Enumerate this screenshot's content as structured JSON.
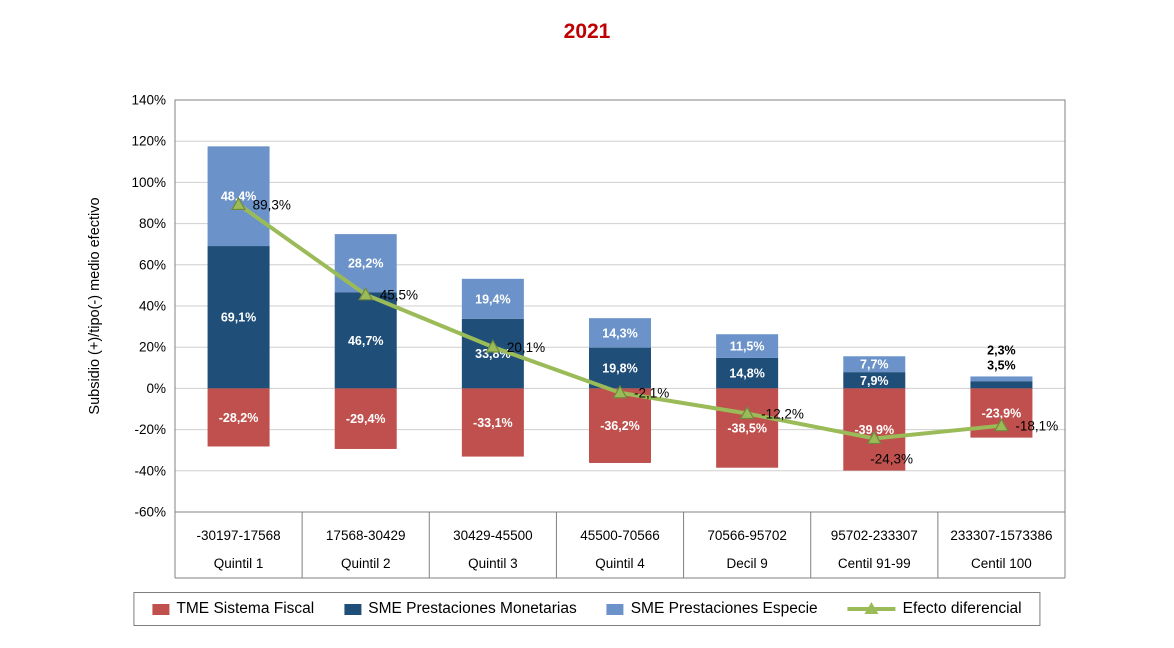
{
  "chart_data": {
    "type": "combo-stacked-bar-line",
    "title": "2021",
    "ylabel": "Subsidio (+)/tipo(-) medio efectivo",
    "ylim": [
      -60,
      140
    ],
    "ytick_step": 20,
    "grid": true,
    "legend_position": "bottom",
    "categories": [
      {
        "range": "-30197-17568",
        "label": "Quintil 1"
      },
      {
        "range": "17568-30429",
        "label": "Quintil 2"
      },
      {
        "range": "30429-45500",
        "label": "Quintil 3"
      },
      {
        "range": "45500-70566",
        "label": "Quintil 4"
      },
      {
        "range": "70566-95702",
        "label": "Decil 9"
      },
      {
        "range": "95702-233307",
        "label": "Centil 91-99"
      },
      {
        "range": "233307-1573386",
        "label": "Centil 100"
      }
    ],
    "series": [
      {
        "name": "TME Sistema Fiscal",
        "type": "bar",
        "stack_role": "negative",
        "color": "#c0504d",
        "values": [
          -28.2,
          -29.4,
          -33.1,
          -36.2,
          -38.5,
          -39.9,
          -23.9
        ],
        "labels": [
          "-28,2%",
          "-29,4%",
          "-33,1%",
          "-36,2%",
          "-38,5%",
          "-39,9%",
          "-23,9%"
        ]
      },
      {
        "name": "SME Prestaciones Monetarias",
        "type": "bar",
        "stack_role": "positive-lower",
        "color": "#1f4e79",
        "values": [
          69.1,
          46.7,
          33.8,
          19.8,
          14.8,
          7.9,
          3.5
        ],
        "labels": [
          "69,1%",
          "46,7%",
          "33,8%",
          "19,8%",
          "14,8%",
          "7,9%",
          "3,5%"
        ]
      },
      {
        "name": "SME Prestaciones Especie",
        "type": "bar",
        "stack_role": "positive-upper",
        "color": "#6b93c9",
        "values": [
          48.4,
          28.2,
          19.4,
          14.3,
          11.5,
          7.7,
          2.3
        ],
        "labels": [
          "48,4%",
          "28,2%",
          "19,4%",
          "14,3%",
          "11,5%",
          "7,7%",
          "2,3%"
        ]
      },
      {
        "name": "Efecto diferencial",
        "type": "line",
        "color": "#9bbb59",
        "marker": "triangle",
        "marker_stroke": "#71893f",
        "values": [
          89.3,
          45.5,
          20.1,
          -2.1,
          -12.2,
          -24.3,
          -18.1
        ],
        "labels": [
          "89,3%",
          "45,5%",
          "20,1%",
          "-2,1%",
          "-12,2%",
          "-24,3%",
          "-18,1%"
        ]
      }
    ]
  }
}
